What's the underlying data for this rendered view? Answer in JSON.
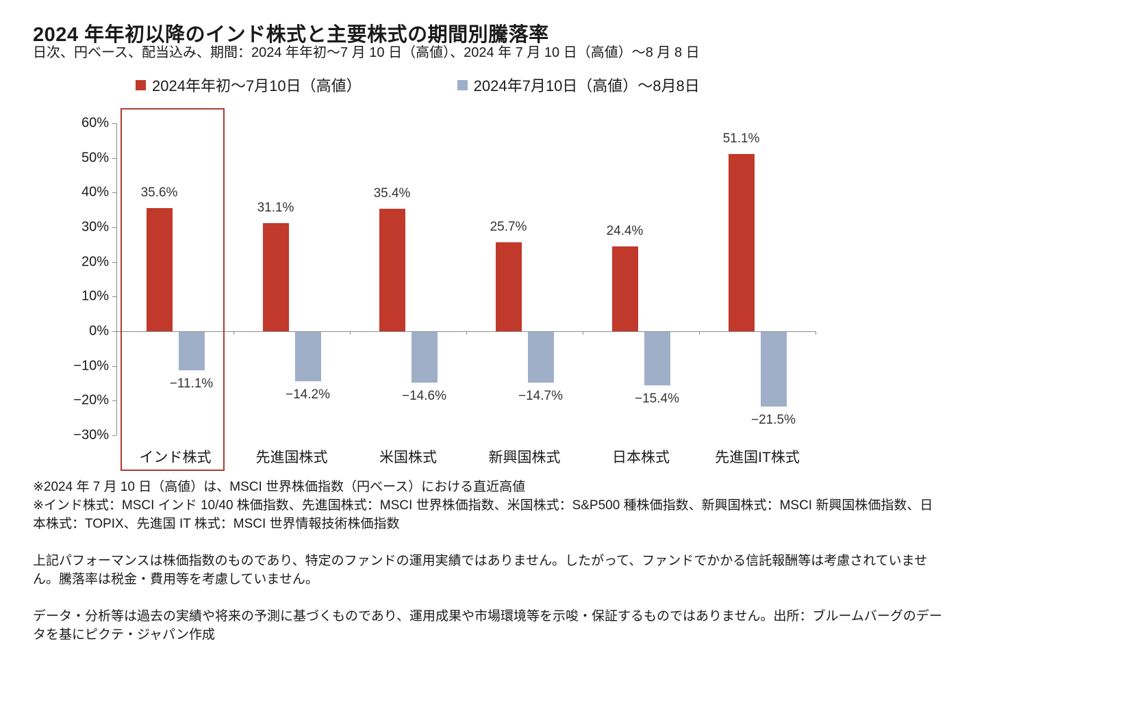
{
  "title": "2024 年年初以降のインド株式と主要株式の期間別騰落率",
  "subtitle": "日次、円ベース、配当込み、期間：2024 年年初～7 月 10 日（高値）、2024 年 7 月 10 日（高値）～8 月 8 日",
  "legend": [
    {
      "label": "2024年年初～7月10日（高値）",
      "color": "#c0392b"
    },
    {
      "label": "2024年7月10日（高値）～8月8日",
      "color": "#9fafc8"
    }
  ],
  "chart_data": {
    "type": "bar",
    "title": "2024 年年初以降のインド株式と主要株式の期間別騰落率",
    "categories": [
      "インド株式",
      "先進国株式",
      "米国株式",
      "新興国株式",
      "日本株式",
      "先進国IT株式"
    ],
    "series": [
      {
        "name": "2024年年初～7月10日（高値）",
        "color": "#c0392b",
        "values": [
          35.6,
          31.1,
          35.4,
          25.7,
          24.4,
          51.1
        ]
      },
      {
        "name": "2024年7月10日（高値）～8月8日",
        "color": "#9fafc8",
        "values": [
          -11.1,
          -14.2,
          -14.6,
          -14.7,
          -15.4,
          -21.5
        ]
      }
    ],
    "xlabel": "",
    "ylabel": "",
    "ylim": [
      -30,
      60
    ],
    "yticks": [
      60,
      50,
      40,
      30,
      20,
      10,
      0,
      -10,
      -20,
      -30
    ],
    "grid": false,
    "legend_position": "top",
    "highlight_category": "インド株式",
    "highlight_box_color": "#b03a31",
    "axis_color": "#8c8c8c"
  },
  "footnotes": [
    "※2024 年 7 月 10 日（高値）は、MSCI 世界株価指数（円ベース）における直近高値",
    "※インド株式：MSCI インド 10/40 株価指数、先進国株式：MSCI 世界株価指数、米国株式：S&P500 種株価指数、新興国株式：MSCI 新興国株価指数、日本株式：TOPIX、先進国 IT 株式：MSCI 世界情報技術株価指数",
    "上記パフォーマンスは株価指数のものであり、特定のファンドの運用実績ではありません。したがって、ファンドでかかる信託報酬等は考慮されていません。騰落率は税金・費用等を考慮していません。",
    "データ・分析等は過去の実績や将来の予測に基づくものであり、運用成果や市場環境等を示唆・保証するものではありません。出所：ブルームバーグのデータを基にピクテ・ジャパン作成"
  ]
}
